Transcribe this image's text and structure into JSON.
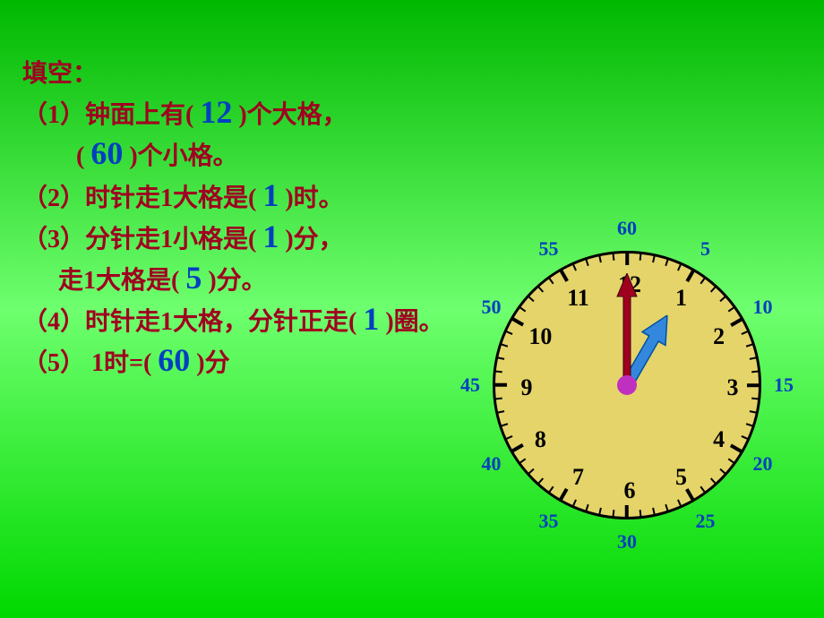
{
  "title": "填空：",
  "q1a": "（1）钟面上有(",
  "a1a": "12",
  "q1b": ")个大格，",
  "q1c": "(",
  "a1c": "60",
  "q1d": ")个小格。",
  "q2a": "（2）时针走1大格是(",
  "a2": "1",
  "q2b": ")时。",
  "q3a": "（3）分针走1小格是(",
  "a3a": "1",
  "q3b": ")分，",
  "q3c": "走1大格是(",
  "a3c": "5",
  "q3d": ")分。",
  "q4a": "（4）时针走1大格，分针正走(",
  "a4": "1",
  "q4b": ")圈。",
  "q5a": "（5） 1时=(",
  "a5": "60",
  "q5b": ")分",
  "clock": {
    "outer_labels": [
      "60",
      "5",
      "10",
      "15",
      "20",
      "25",
      "30",
      "35",
      "40",
      "45",
      "50",
      "55"
    ],
    "hour_numbers": [
      "12",
      "1",
      "2",
      "3",
      "4",
      "5",
      "6",
      "7",
      "8",
      "9",
      "10",
      "11"
    ],
    "face_color": "#e5d46a",
    "number_color": "#000000",
    "outer_color": "#0040c0",
    "minute_hand_angle": 0,
    "hour_hand_angle": 30,
    "minute_hand_color": "#a00020",
    "hour_hand_color": "#3388dd",
    "center_color": "#c030c0"
  }
}
